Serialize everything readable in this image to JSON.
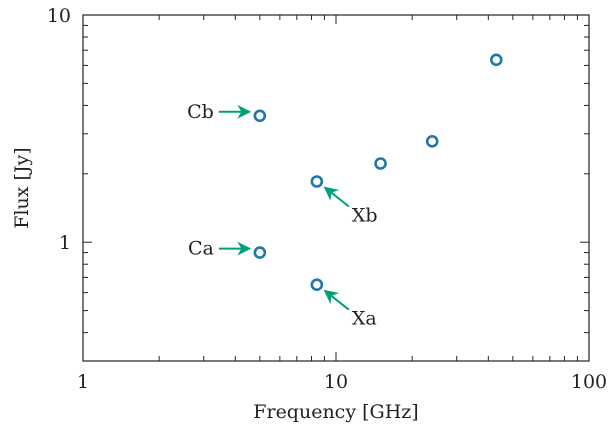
{
  "chart_data": {
    "type": "scatter",
    "xlabel": "Frequency [GHz]",
    "ylabel": "Flux [Jy]",
    "xscale": "log",
    "yscale": "log",
    "xlim": [
      1,
      100
    ],
    "ylim": [
      0.3,
      10
    ],
    "x_ticks": [
      {
        "value": 1,
        "label": "1"
      },
      {
        "value": 10,
        "label": "10"
      },
      {
        "value": 100,
        "label": "100"
      }
    ],
    "y_ticks": [
      {
        "value": 1,
        "label": "1"
      },
      {
        "value": 10,
        "label": "10"
      }
    ],
    "grid": false,
    "marker_color": "#1f78a8",
    "arrow_color": "#00a07a",
    "points": [
      {
        "x": 5.0,
        "y": 3.6
      },
      {
        "x": 5.0,
        "y": 0.9
      },
      {
        "x": 8.4,
        "y": 1.85
      },
      {
        "x": 8.4,
        "y": 0.65
      },
      {
        "x": 15.0,
        "y": 2.22
      },
      {
        "x": 24.0,
        "y": 2.78
      },
      {
        "x": 43.0,
        "y": 6.35
      }
    ],
    "annotations": [
      {
        "text": "Cb",
        "x": 5.0,
        "y": 3.6,
        "side": "left"
      },
      {
        "text": "Ca",
        "x": 5.0,
        "y": 0.9,
        "side": "left"
      },
      {
        "text": "Xb",
        "x": 8.4,
        "y": 1.85,
        "side": "lower-right"
      },
      {
        "text": "Xa",
        "x": 8.4,
        "y": 0.65,
        "side": "lower-right"
      }
    ]
  }
}
